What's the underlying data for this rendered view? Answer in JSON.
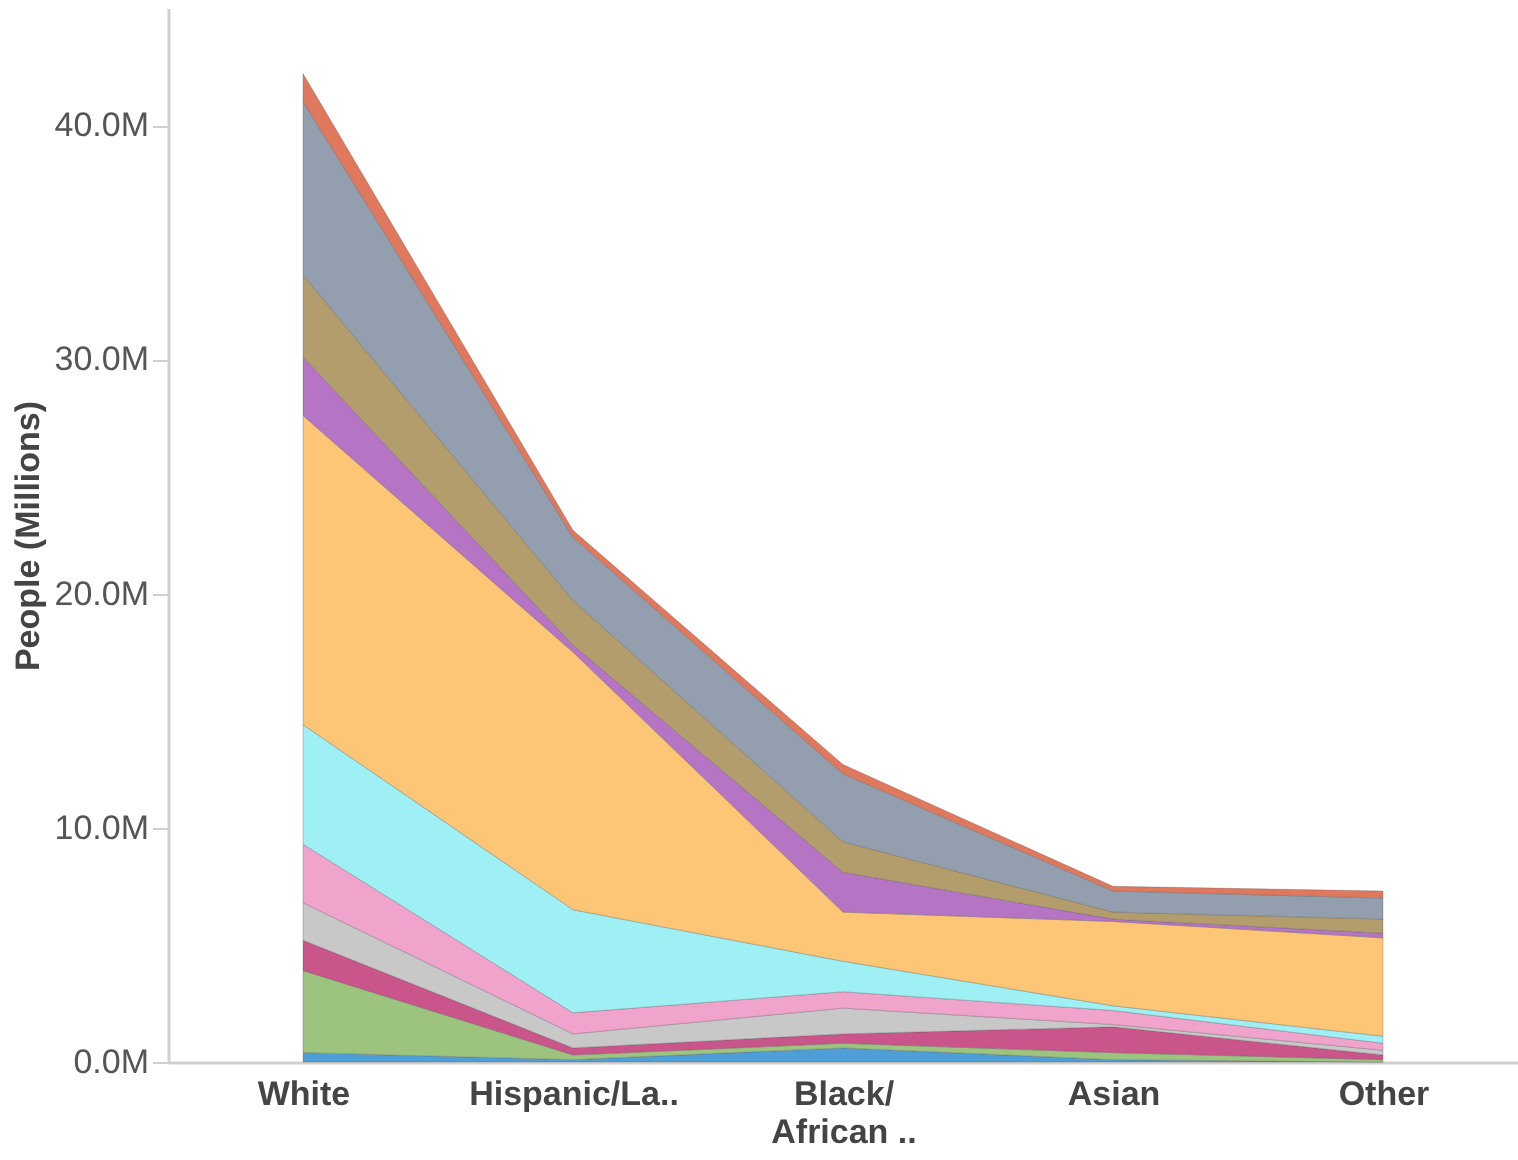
{
  "chart_data": {
    "type": "area",
    "stacked": true,
    "ylabel": "People (Millions)",
    "categories": [
      "White",
      "Hispanic/La..",
      "Black/\nAfrican ..",
      "Asian",
      "Other"
    ],
    "ylim": [
      0,
      45
    ],
    "yticks": [
      {
        "value": 0,
        "label": "0.0M"
      },
      {
        "value": 10,
        "label": "10.0M"
      },
      {
        "value": 20,
        "label": "20.0M"
      },
      {
        "value": 30,
        "label": "30.0M"
      },
      {
        "value": 40,
        "label": "40.0M"
      }
    ],
    "grid": false,
    "legend": false,
    "series": [
      {
        "color": "#4e9fd8",
        "values": [
          0.4,
          0.1,
          0.6,
          0.1,
          0.0
        ]
      },
      {
        "color": "#9dc47f",
        "values": [
          3.5,
          0.2,
          0.2,
          0.3,
          0.1
        ]
      },
      {
        "color": "#c9558a",
        "values": [
          1.3,
          0.3,
          0.4,
          1.1,
          0.2
        ]
      },
      {
        "color": "#c8c8c8",
        "values": [
          1.6,
          0.6,
          1.1,
          0.1,
          0.2
        ]
      },
      {
        "color": "#f0a3cb",
        "values": [
          2.5,
          0.9,
          0.7,
          0.6,
          0.3
        ]
      },
      {
        "color": "#9ef0f4",
        "values": [
          5.1,
          4.4,
          1.3,
          0.2,
          0.3
        ]
      },
      {
        "color": "#fdc676",
        "values": [
          13.2,
          11.0,
          2.1,
          3.6,
          4.2
        ]
      },
      {
        "color": "#b574c4",
        "values": [
          2.5,
          0.3,
          1.7,
          0.1,
          0.2
        ]
      },
      {
        "color": "#b49d6c",
        "values": [
          3.5,
          1.9,
          1.3,
          0.3,
          0.6
        ]
      },
      {
        "color": "#939eae",
        "values": [
          7.4,
          2.7,
          2.9,
          0.9,
          0.9
        ]
      },
      {
        "color": "#e0785e",
        "values": [
          1.2,
          0.3,
          0.4,
          0.2,
          0.3
        ]
      }
    ]
  }
}
